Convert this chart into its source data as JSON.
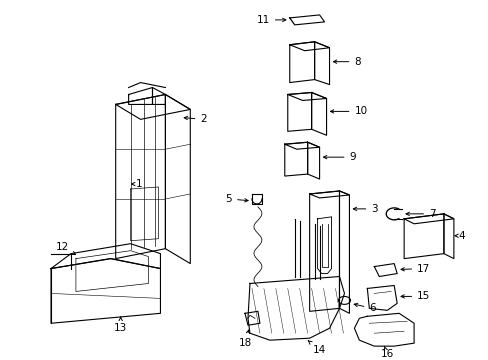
{
  "bg_color": "#ffffff",
  "line_color": "#000000",
  "figsize": [
    4.89,
    3.6
  ],
  "dpi": 100,
  "lw": 0.8
}
